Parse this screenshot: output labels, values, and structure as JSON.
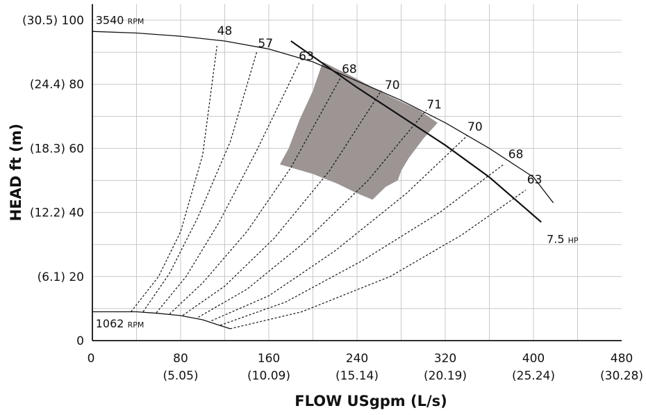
{
  "chart_data": {
    "type": "line",
    "x_axis": {
      "label_main": "FLOW USgpm",
      "label_unit": "(L/s)",
      "range": [
        0,
        480
      ],
      "ticks": [
        {
          "value": 0,
          "label": "0",
          "sublabel": ""
        },
        {
          "value": 80,
          "label": "80",
          "sublabel": "(5.05)"
        },
        {
          "value": 160,
          "label": "160",
          "sublabel": "(10.09)"
        },
        {
          "value": 240,
          "label": "240",
          "sublabel": "(15.14)"
        },
        {
          "value": 320,
          "label": "320",
          "sublabel": "(20.19)"
        },
        {
          "value": 400,
          "label": "400",
          "sublabel": "(25.24)"
        },
        {
          "value": 480,
          "label": "480",
          "sublabel": "(30.28)"
        }
      ]
    },
    "y_axis": {
      "label": "HEAD ft (m)",
      "range": [
        0,
        105
      ],
      "ticks": [
        {
          "value": 0,
          "label": "0"
        },
        {
          "value": 20,
          "label": "(6.1) 20"
        },
        {
          "value": 40,
          "label": "(12.2) 40"
        },
        {
          "value": 60,
          "label": "(18.3) 60"
        },
        {
          "value": 80,
          "label": "(24.4) 80"
        },
        {
          "value": 100,
          "label": "(30.5) 100"
        }
      ]
    },
    "grid": true,
    "series": [
      {
        "name": "3540 RPM",
        "label_num": "3540",
        "label_unit": "RPM",
        "style": "solid",
        "points": [
          [
            0,
            96.5
          ],
          [
            40,
            96
          ],
          [
            80,
            95
          ],
          [
            120,
            93.5
          ],
          [
            160,
            91
          ],
          [
            200,
            87
          ],
          [
            240,
            81
          ],
          [
            280,
            75
          ],
          [
            320,
            68
          ],
          [
            360,
            60
          ],
          [
            400,
            51
          ],
          [
            418,
            43
          ]
        ]
      },
      {
        "name": "1062 RPM",
        "label_num": "1062",
        "label_unit": "RPM",
        "style": "solid",
        "points": [
          [
            0,
            9
          ],
          [
            40,
            9
          ],
          [
            60,
            8.5
          ],
          [
            80,
            7.8
          ],
          [
            100,
            6.5
          ],
          [
            115,
            4.8
          ],
          [
            125,
            3.7
          ]
        ]
      },
      {
        "name": "7.5 HP",
        "label_num": "7.5",
        "label_unit": "HP",
        "style": "solid",
        "points": [
          [
            180,
            93.5
          ],
          [
            240,
            79
          ],
          [
            280,
            70
          ],
          [
            320,
            61
          ],
          [
            360,
            51
          ],
          [
            407,
            37
          ]
        ]
      }
    ],
    "efficiency_lines": [
      {
        "label": "48",
        "label_at": [
          120,
          95.5
        ],
        "points": [
          [
            35,
            9
          ],
          [
            60,
            20
          ],
          [
            80,
            34
          ],
          [
            100,
            58
          ],
          [
            113,
            92
          ]
        ]
      },
      {
        "label": "57",
        "label_at": [
          157,
          91.5
        ],
        "points": [
          [
            46,
            9
          ],
          [
            70,
            21
          ],
          [
            95,
            38
          ],
          [
            125,
            62
          ],
          [
            149,
            90
          ]
        ]
      },
      {
        "label": "63",
        "label_at": [
          194,
          87.5
        ],
        "points": [
          [
            58,
            8.7
          ],
          [
            85,
            20
          ],
          [
            115,
            37
          ],
          [
            150,
            60
          ],
          [
            188,
            87
          ]
        ]
      },
      {
        "label": "68",
        "label_at": [
          233,
          83.5
        ],
        "points": [
          [
            70,
            8.3
          ],
          [
            100,
            18
          ],
          [
            140,
            34
          ],
          [
            180,
            54
          ],
          [
            225,
            82
          ]
        ]
      },
      {
        "label": "70",
        "label_at": [
          272,
          78.5
        ],
        "points": [
          [
            82,
            7.9
          ],
          [
            120,
            17
          ],
          [
            165,
            32
          ],
          [
            215,
            53
          ],
          [
            262,
            78
          ]
        ]
      },
      {
        "label": "71",
        "label_at": [
          310,
          72.5
        ],
        "points": [
          [
            96,
            7.3
          ],
          [
            140,
            16
          ],
          [
            190,
            30
          ],
          [
            250,
            50
          ],
          [
            303,
            72
          ]
        ]
      },
      {
        "label": "70",
        "label_at": [
          347,
          65.5
        ],
        "points": [
          [
            108,
            6.2
          ],
          [
            160,
            14
          ],
          [
            220,
            28
          ],
          [
            285,
            46
          ],
          [
            340,
            64
          ]
        ]
      },
      {
        "label": "68",
        "label_at": [
          384,
          57
        ],
        "points": [
          [
            116,
            4.8
          ],
          [
            175,
            12
          ],
          [
            245,
            25
          ],
          [
            315,
            40
          ],
          [
            373,
            55
          ]
        ]
      },
      {
        "label": "63",
        "label_at": [
          401,
          49
        ],
        "points": [
          [
            125,
            3.7
          ],
          [
            190,
            9
          ],
          [
            270,
            20
          ],
          [
            335,
            33
          ],
          [
            393,
            47
          ]
        ]
      }
    ],
    "shaded_region": {
      "color": "#9c9594",
      "points": [
        [
          209,
          87
        ],
        [
          238,
          82
        ],
        [
          265,
          77
        ],
        [
          296,
          72
        ],
        [
          313,
          68
        ],
        [
          300,
          63
        ],
        [
          287,
          57
        ],
        [
          280,
          53
        ],
        [
          277,
          50
        ],
        [
          266,
          48
        ],
        [
          254,
          44
        ],
        [
          240,
          46
        ],
        [
          222,
          49
        ],
        [
          200,
          52
        ],
        [
          170,
          55
        ],
        [
          178,
          60
        ],
        [
          188,
          69
        ],
        [
          200,
          78
        ],
        [
          205,
          83
        ]
      ]
    }
  }
}
